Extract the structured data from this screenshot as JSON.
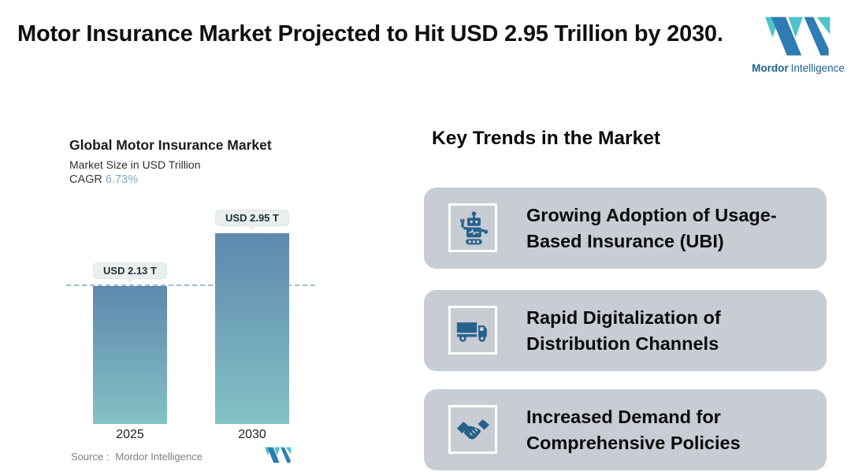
{
  "header": {
    "title": "Motor Insurance Market Projected to Hit USD 2.95 Trillion by 2030.",
    "logo": {
      "brand_bold": "Mordor",
      "brand_regular": "Intelligence"
    }
  },
  "chart": {
    "title": "Global Motor Insurance Market",
    "subtitle": "Market Size in USD Trillion",
    "cagr_label": "CAGR",
    "cagr_value": "6.73%",
    "source_label": "Source :",
    "source_value": "Mordor Intelligence"
  },
  "chart_data": {
    "type": "bar",
    "title": "Global Motor Insurance Market",
    "subtitle": "Market Size in USD Trillion",
    "unit": "USD Trillion",
    "cagr": "6.73%",
    "categories": [
      "2025",
      "2030"
    ],
    "values": [
      2.13,
      2.95
    ],
    "value_labels": [
      "USD 2.13 T",
      "USD 2.95 T"
    ],
    "ylim": [
      0,
      3.05
    ],
    "reference_line": 2.13,
    "grid": false,
    "legend": false,
    "bar_gradient": [
      "#5d89ad",
      "#84c1c6"
    ],
    "reference_line_color": "#9bbdd0"
  },
  "trends": {
    "heading": "Key Trends in the Market",
    "items": [
      {
        "icon": "robot-icon",
        "text": "Growing Adoption of Usage-Based Insurance (UBI)"
      },
      {
        "icon": "truck-icon",
        "text": "Rapid Digitalization of Distribution Channels"
      },
      {
        "icon": "handshake-icon",
        "text": "Increased Demand for Comprehensive Policies"
      }
    ]
  },
  "colors": {
    "card_background": "#c8ccd3",
    "icon_blue": "#26618c",
    "logo_teal": "#4fc4cb",
    "logo_blue": "#2d7cb3",
    "cagr_value": "#7fa8c8",
    "bubble_background": "#e8efed"
  }
}
